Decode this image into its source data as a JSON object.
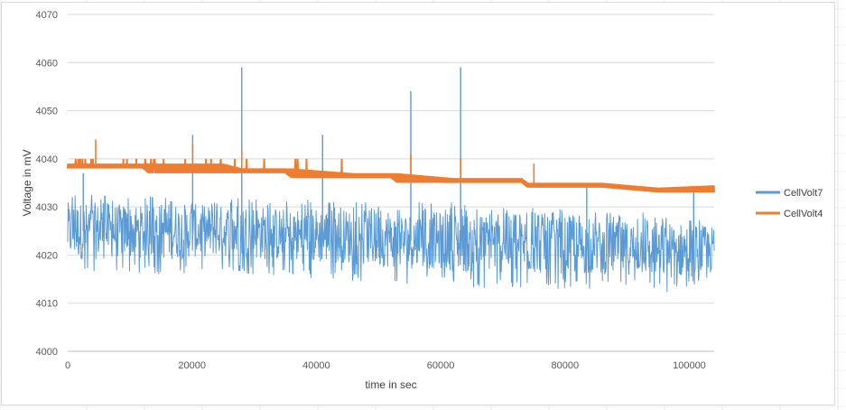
{
  "chart_data": {
    "type": "line",
    "title": "",
    "xlabel": "time in sec",
    "ylabel": "Voltage in mV",
    "xlim": [
      0,
      104000
    ],
    "ylim": [
      4000,
      4070
    ],
    "x_ticks": [
      "0",
      "20000",
      "40000",
      "60000",
      "80000",
      "100000"
    ],
    "y_ticks": [
      "4000",
      "4010",
      "4020",
      "4030",
      "4040",
      "4050",
      "4060",
      "4070"
    ],
    "grid": true,
    "legend_position": "right",
    "series": [
      {
        "name": "CellVolt7",
        "color": "#5b9bd5",
        "x": [
          0,
          4000,
          8000,
          12000,
          16000,
          20000,
          24000,
          28000,
          32000,
          36000,
          40000,
          44000,
          48000,
          52000,
          56000,
          60000,
          64000,
          68000,
          72000,
          76000,
          80000,
          84000,
          88000,
          92000,
          96000,
          100000,
          104000
        ],
        "y_mean": [
          4025,
          4025,
          4025,
          4025,
          4025,
          4025,
          4025,
          4025,
          4024.5,
          4024,
          4024,
          4024,
          4023.5,
          4023,
          4023,
          4023,
          4022.5,
          4022.5,
          4022,
          4022,
          4022,
          4021.5,
          4021.5,
          4021.5,
          4021,
          4021,
          4021
        ],
        "y_min": [
          4016,
          4016,
          4016,
          4016,
          4016,
          4016,
          4017,
          4016,
          4016,
          4015,
          4015,
          4015,
          4014,
          4014,
          4014,
          4014,
          4013,
          4013,
          4013,
          4013,
          4013,
          4013,
          4013,
          4013,
          4012,
          4013,
          4015
        ],
        "y_max": [
          4033,
          4033,
          4032,
          4032,
          4033,
          4032,
          4032,
          4033,
          4032,
          4031,
          4032,
          4031,
          4031,
          4030,
          4031,
          4031,
          4031,
          4030,
          4030,
          4030,
          4030,
          4029,
          4029,
          4029,
          4029,
          4029,
          4029
        ],
        "spikes": [
          {
            "x": 2500,
            "y": 4037
          },
          {
            "x": 20100,
            "y": 4045
          },
          {
            "x": 28000,
            "y": 4059
          },
          {
            "x": 41000,
            "y": 4045
          },
          {
            "x": 55200,
            "y": 4054
          },
          {
            "x": 63200,
            "y": 4059
          },
          {
            "x": 83500,
            "y": 4034
          },
          {
            "x": 100700,
            "y": 4033
          }
        ]
      },
      {
        "name": "CellVolt4",
        "color": "#ed7d31",
        "x": [
          0,
          12000,
          13000,
          25000,
          28000,
          35000,
          36000,
          46000,
          48000,
          52000,
          53000,
          62000,
          64000,
          73000,
          74000,
          84000,
          86000,
          95000,
          104000
        ],
        "y_low": [
          4038,
          4038,
          4037,
          4037,
          4037,
          4037,
          4036,
          4036,
          4036,
          4036,
          4035,
          4035,
          4035,
          4035,
          4034,
          4034,
          4034,
          4033,
          4033
        ],
        "y_high": [
          4039,
          4039,
          4039,
          4039,
          4038,
          4038,
          4038,
          4037,
          4037,
          4037,
          4037,
          4036,
          4036,
          4036,
          4035,
          4035,
          4035,
          4034,
          4034.5
        ],
        "flicker_high": 4040,
        "spikes": [
          {
            "x": 4500,
            "y": 4044
          },
          {
            "x": 20100,
            "y": 4043
          },
          {
            "x": 28000,
            "y": 4042
          },
          {
            "x": 55200,
            "y": 4041
          },
          {
            "x": 63200,
            "y": 4040
          },
          {
            "x": 75000,
            "y": 4039
          }
        ]
      }
    ]
  }
}
